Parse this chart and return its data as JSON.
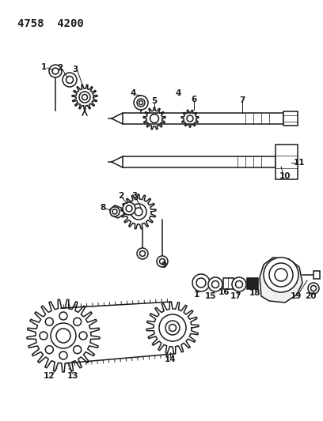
{
  "header": "4758  4200",
  "bg": "#ffffff",
  "lc": "#1a1a1a",
  "dark": "#222222",
  "lw": 1.1,
  "lt": 0.65,
  "fs": 7.5,
  "fw": 4.08,
  "fh": 5.33,
  "dpi": 100
}
